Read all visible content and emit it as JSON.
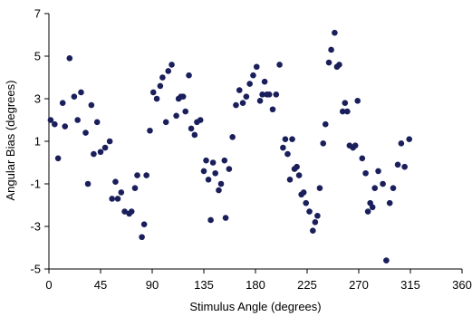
{
  "chart_data": {
    "type": "scatter",
    "title": "",
    "xlabel": "Stimulus Angle (degrees)",
    "ylabel": "Angular Bias (degrees)",
    "xlim": [
      0,
      360
    ],
    "ylim": [
      -5,
      7
    ],
    "x_ticks": [
      0,
      45,
      90,
      135,
      180,
      225,
      270,
      315,
      360
    ],
    "y_ticks": [
      -5,
      -3,
      -1,
      1,
      3,
      5,
      7
    ],
    "x_tick_labels": [
      "0",
      "45",
      "90",
      "135",
      "180",
      "225",
      "270",
      "315",
      "360"
    ],
    "y_tick_labels": [
      "-5",
      "-3",
      "-1",
      "1",
      "3",
      "5",
      "7"
    ],
    "grid": false,
    "legend": "none",
    "marker_color": "#1a1f5c",
    "series": [
      {
        "points": [
          [
            1.5,
            2.0
          ],
          [
            5,
            1.8
          ],
          [
            8,
            0.2
          ],
          [
            12,
            2.8
          ],
          [
            14,
            1.7
          ],
          [
            18,
            4.9
          ],
          [
            22,
            3.1
          ],
          [
            25,
            2.0
          ],
          [
            28,
            3.3
          ],
          [
            32,
            1.4
          ],
          [
            34,
            -1.0
          ],
          [
            37,
            2.7
          ],
          [
            39,
            0.4
          ],
          [
            42,
            1.9
          ],
          [
            45,
            0.5
          ],
          [
            49,
            0.7
          ],
          [
            53,
            1.0
          ],
          [
            55,
            -1.7
          ],
          [
            58,
            -0.9
          ],
          [
            60,
            -1.7
          ],
          [
            63,
            -1.4
          ],
          [
            66,
            -2.3
          ],
          [
            70,
            -2.4
          ],
          [
            72,
            -2.3
          ],
          [
            75,
            -1.2
          ],
          [
            77,
            -0.6
          ],
          [
            81,
            -3.5
          ],
          [
            83,
            -2.9
          ],
          [
            85,
            -0.6
          ],
          [
            88,
            1.5
          ],
          [
            91,
            3.3
          ],
          [
            94,
            3.0
          ],
          [
            97,
            3.6
          ],
          [
            99,
            4.0
          ],
          [
            102,
            1.9
          ],
          [
            104,
            4.3
          ],
          [
            107,
            4.6
          ],
          [
            111,
            2.2
          ],
          [
            113,
            3.0
          ],
          [
            115,
            3.1
          ],
          [
            117,
            3.1
          ],
          [
            119,
            2.4
          ],
          [
            122,
            4.1
          ],
          [
            124,
            1.6
          ],
          [
            127,
            1.3
          ],
          [
            129,
            1.9
          ],
          [
            132,
            2.0
          ],
          [
            135,
            -0.4
          ],
          [
            137,
            0.1
          ],
          [
            139,
            -0.8
          ],
          [
            141,
            -2.7
          ],
          [
            143,
            0.0
          ],
          [
            145,
            -0.5
          ],
          [
            148,
            -1.3
          ],
          [
            150,
            -1.0
          ],
          [
            153,
            0.1
          ],
          [
            154,
            -2.6
          ],
          [
            157,
            -0.3
          ],
          [
            160,
            1.2
          ],
          [
            163,
            2.7
          ],
          [
            166,
            3.4
          ],
          [
            169,
            2.8
          ],
          [
            172,
            3.1
          ],
          [
            175,
            3.7
          ],
          [
            178,
            4.1
          ],
          [
            181,
            4.5
          ],
          [
            184,
            2.9
          ],
          [
            186,
            3.2
          ],
          [
            188,
            3.8
          ],
          [
            190,
            3.2
          ],
          [
            192,
            3.2
          ],
          [
            195,
            2.5
          ],
          [
            198,
            3.2
          ],
          [
            201,
            4.6
          ],
          [
            204,
            0.7
          ],
          [
            206,
            1.1
          ],
          [
            208,
            0.4
          ],
          [
            210,
            -0.8
          ],
          [
            212,
            1.1
          ],
          [
            214,
            -0.3
          ],
          [
            216,
            -0.2
          ],
          [
            218,
            -0.6
          ],
          [
            220,
            -1.5
          ],
          [
            222,
            -1.4
          ],
          [
            224,
            -1.9
          ],
          [
            227,
            -2.3
          ],
          [
            230,
            -3.2
          ],
          [
            232,
            -2.8
          ],
          [
            234,
            -2.5
          ],
          [
            236,
            -1.2
          ],
          [
            239,
            0.9
          ],
          [
            241,
            1.8
          ],
          [
            244,
            4.7
          ],
          [
            246,
            5.3
          ],
          [
            249,
            6.1
          ],
          [
            251,
            4.5
          ],
          [
            253,
            4.6
          ],
          [
            256,
            2.4
          ],
          [
            258,
            2.8
          ],
          [
            260,
            2.4
          ],
          [
            262,
            0.8
          ],
          [
            265,
            0.7
          ],
          [
            267,
            0.8
          ],
          [
            269,
            2.9
          ],
          [
            273,
            0.2
          ],
          [
            276,
            -0.5
          ],
          [
            278,
            -2.3
          ],
          [
            280,
            -1.9
          ],
          [
            282,
            -2.1
          ],
          [
            284,
            -1.2
          ],
          [
            287,
            -0.4
          ],
          [
            291,
            -1.0
          ],
          [
            294,
            -4.6
          ],
          [
            297,
            -1.9
          ],
          [
            300,
            -1.2
          ],
          [
            304,
            -0.1
          ],
          [
            307,
            0.9
          ],
          [
            310,
            -0.2
          ],
          [
            314,
            1.1
          ]
        ]
      }
    ]
  }
}
